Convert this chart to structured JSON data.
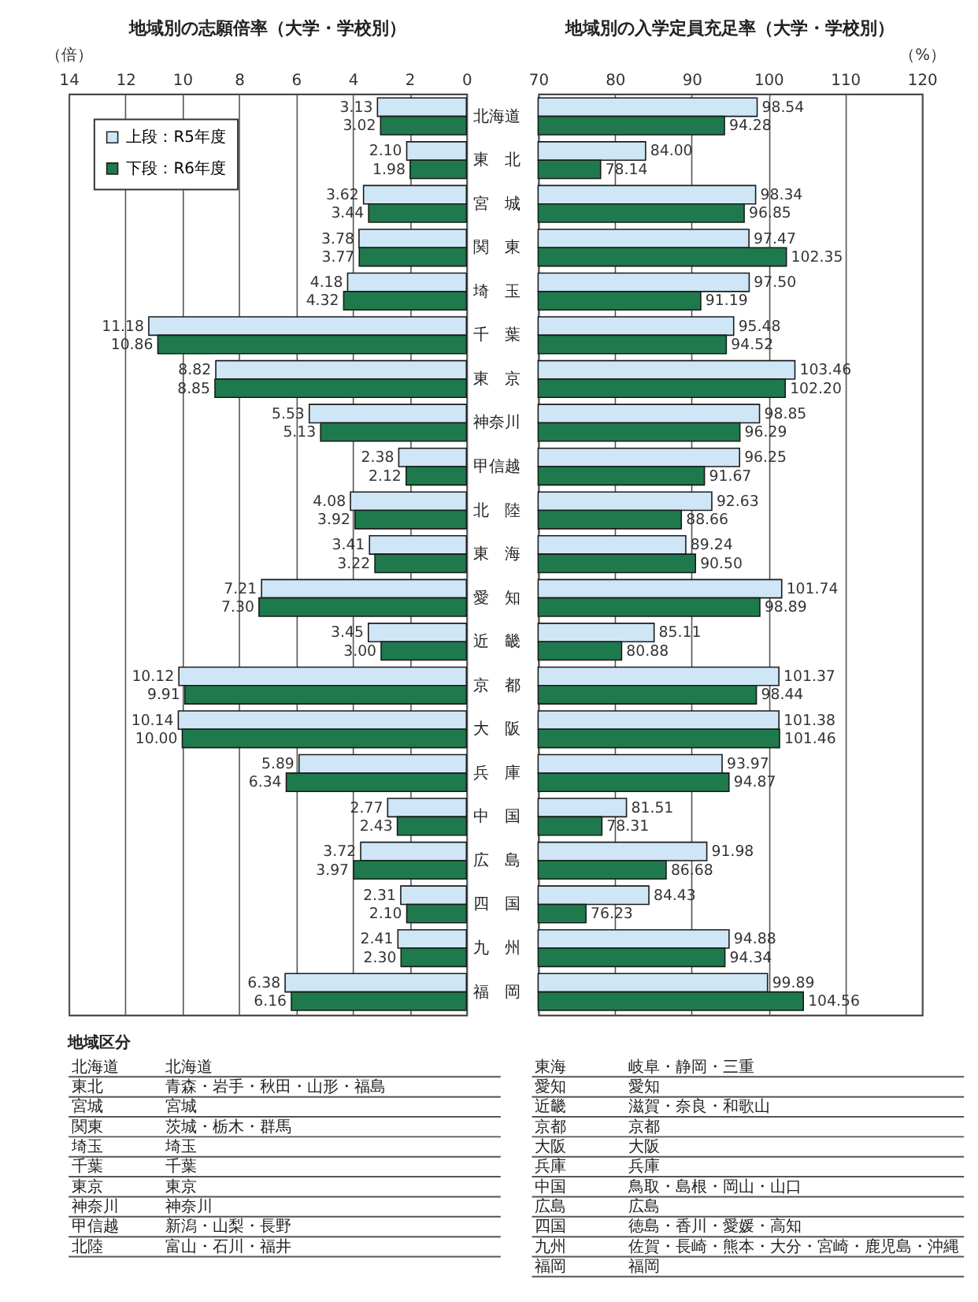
{
  "chart_data": [
    {
      "type": "bar",
      "orientation": "horizontal",
      "title": "地域別の志願倍率（大学・学校別）",
      "xlabel": "（倍）",
      "categories": [
        "北海道",
        "東　北",
        "宮　城",
        "関　東",
        "埼　玉",
        "千　葉",
        "東　京",
        "神奈川",
        "甲信越",
        "北　陸",
        "東　海",
        "愛　知",
        "近　畿",
        "京　都",
        "大　阪",
        "兵　庫",
        "中　国",
        "広　島",
        "四　国",
        "九　州",
        "福　岡"
      ],
      "series": [
        {
          "name": "上段：R5年度",
          "color": "#cfe6f7",
          "values": [
            3.13,
            2.1,
            3.62,
            3.78,
            4.18,
            11.18,
            8.82,
            5.53,
            2.38,
            4.08,
            3.41,
            7.21,
            3.45,
            10.12,
            10.14,
            5.89,
            2.77,
            3.72,
            2.31,
            2.41,
            6.38
          ],
          "value_labels": [
            "3.13",
            "2.10",
            "3.62",
            "3.78",
            "4.18",
            "11.18",
            "8.82",
            "5.53",
            "2.38",
            "4.08",
            "3.41",
            "7.21",
            "3.45",
            "10.12",
            "10.14",
            "5.89",
            "2.77",
            "3.72",
            "2.31",
            "2.41",
            "6.38"
          ]
        },
        {
          "name": "下段：R6年度",
          "color": "#1e7a4c",
          "values": [
            3.02,
            1.98,
            3.44,
            3.77,
            4.32,
            10.86,
            8.85,
            5.13,
            2.12,
            3.92,
            3.22,
            7.3,
            3.0,
            9.91,
            10.0,
            6.34,
            2.43,
            3.97,
            2.1,
            2.3,
            6.16
          ],
          "value_labels": [
            "3.02",
            "1.98",
            "3.44",
            "3.77",
            "4.32",
            "10.86",
            "8.85",
            "5.13",
            "2.12",
            "3.92",
            "3.22",
            "7.30",
            "3.00",
            "9.91",
            "10.00",
            "6.34",
            "2.43",
            "3.97",
            "2.10",
            "2.30",
            "6.16"
          ]
        }
      ],
      "xlim": [
        14,
        0
      ],
      "xticks": [
        14,
        12,
        10,
        8,
        6,
        4,
        2,
        0
      ],
      "grid": "x",
      "legend": "top left"
    },
    {
      "type": "bar",
      "orientation": "horizontal",
      "title": "地域別の入学定員充足率（大学・学校別）",
      "xlabel": "（%）",
      "categories": [
        null,
        null,
        null,
        null,
        null,
        null,
        null,
        null,
        null,
        null,
        null,
        null,
        null,
        null,
        null,
        null,
        null,
        null,
        null,
        null,
        null
      ],
      "series": [
        {
          "color": "#cfe6f7",
          "values": [
            98.54,
            84.0,
            98.34,
            97.47,
            97.5,
            95.48,
            103.46,
            98.85,
            96.25,
            92.63,
            89.24,
            101.74,
            85.11,
            101.37,
            101.38,
            93.97,
            81.51,
            91.98,
            84.43,
            94.88,
            99.89
          ],
          "value_labels": [
            "98.54",
            "84.00",
            "98.34",
            "97.47",
            "97.50",
            "95.48",
            "103.46",
            "98.85",
            "96.25",
            "92.63",
            "89.24",
            "101.74",
            "85.11",
            "101.37",
            "101.38",
            "93.97",
            "81.51",
            "91.98",
            "84.43",
            "94.88",
            "99.89"
          ]
        },
        {
          "color": "#1e7a4c",
          "values": [
            94.28,
            78.14,
            96.85,
            102.35,
            91.19,
            94.52,
            102.2,
            96.29,
            91.67,
            88.66,
            90.5,
            98.89,
            80.88,
            98.44,
            101.46,
            94.87,
            78.31,
            86.68,
            76.23,
            94.34,
            104.56
          ],
          "value_labels": [
            "94.28",
            "78.14",
            "96.85",
            "102.35",
            "91.19",
            "94.52",
            "102.20",
            "96.29",
            "91.67",
            "88.66",
            "90.50",
            "98.89",
            "80.88",
            "98.44",
            "101.46",
            "94.87",
            "78.31",
            "86.68",
            "76.23",
            "94.34",
            "104.56"
          ]
        }
      ],
      "xlim": [
        70,
        120
      ],
      "xticks": [
        70,
        80,
        90,
        100,
        110,
        120
      ],
      "grid": "x",
      "tick_labels": "x"
    },
    {
      "type": "other",
      "title": "地域区分",
      "annotations": [
        "北海道",
        "北海道",
        "東北",
        "青森・岩手・秋田・山形・福島",
        "宮城",
        "宮城",
        "関東",
        "茨城・栃木・群馬",
        "埼玉",
        "埼玉",
        "千葉",
        "千葉",
        "東京",
        "東京",
        "神奈川",
        "神奈川",
        "甲信越",
        "新潟・山梨・長野",
        "北陸",
        "富山・石川・福井",
        "東海",
        "岐阜・静岡・三重",
        "愛知",
        "愛知",
        "近畿",
        "滋賀・奈良・和歌山",
        "京都",
        "京都",
        "大阪",
        "大阪",
        "兵庫",
        "兵庫",
        "中国",
        "鳥取・島根・岡山・山口",
        "広島",
        "広島",
        "四国",
        "徳島・香川・愛媛・高知",
        "九州",
        "佐賀・長崎・熊本・大分・宮崎・鹿児島・沖縄",
        "福岡",
        "福岡"
      ]
    }
  ]
}
